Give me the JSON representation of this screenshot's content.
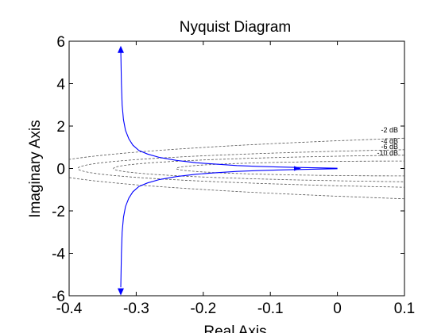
{
  "chart_data": {
    "type": "line",
    "title": "Nyquist Diagram",
    "xlabel": "Real Axis",
    "ylabel": "Imaginary Axis",
    "xlim": [
      -0.4,
      0.1
    ],
    "ylim": [
      -6,
      6
    ],
    "xticks": [
      -0.4,
      -0.3,
      -0.2,
      -0.1,
      0,
      0.1
    ],
    "xtick_labels": [
      "-0.4",
      "-0.3",
      "-0.2",
      "-0.1",
      "0",
      "0.1"
    ],
    "yticks": [
      -6,
      -4,
      -2,
      0,
      2,
      4,
      6
    ],
    "ytick_labels": [
      "-6",
      "-4",
      "-2",
      "0",
      "2",
      "4",
      "6"
    ],
    "grid": "M-circles (constant closed-loop gain contours)",
    "legend": "none",
    "line_color": "#0000ff",
    "grid_color": "#555555",
    "series": [
      {
        "branch": "positive-frequency",
        "points": [
          [
            -0.323,
            5.6
          ],
          [
            -0.322,
            4.0
          ],
          [
            -0.321,
            3.0
          ],
          [
            -0.319,
            2.3
          ],
          [
            -0.316,
            1.8
          ],
          [
            -0.311,
            1.4
          ],
          [
            -0.305,
            1.1
          ],
          [
            -0.296,
            0.85
          ],
          [
            -0.283,
            0.68
          ],
          [
            -0.265,
            0.52
          ],
          [
            -0.24,
            0.38
          ],
          [
            -0.21,
            0.27
          ],
          [
            -0.18,
            0.2
          ],
          [
            -0.15,
            0.14
          ],
          [
            -0.12,
            0.1
          ],
          [
            -0.09,
            0.07
          ],
          [
            -0.06,
            0.05
          ],
          [
            -0.03,
            0.03
          ],
          [
            0,
            0.01
          ]
        ]
      },
      {
        "branch": "negative-frequency",
        "points": [
          [
            -0.323,
            -5.6
          ],
          [
            -0.322,
            -4.0
          ],
          [
            -0.321,
            -3.0
          ],
          [
            -0.319,
            -2.3
          ],
          [
            -0.316,
            -1.8
          ],
          [
            -0.311,
            -1.4
          ],
          [
            -0.305,
            -1.1
          ],
          [
            -0.296,
            -0.85
          ],
          [
            -0.283,
            -0.68
          ],
          [
            -0.265,
            -0.52
          ],
          [
            -0.24,
            -0.38
          ],
          [
            -0.21,
            -0.27
          ],
          [
            -0.18,
            -0.2
          ],
          [
            -0.15,
            -0.14
          ],
          [
            -0.12,
            -0.1
          ],
          [
            -0.09,
            -0.07
          ],
          [
            -0.06,
            -0.05
          ],
          [
            -0.03,
            -0.03
          ],
          [
            0,
            -0.01
          ]
        ]
      }
    ],
    "arrows": [
      {
        "x": -0.323,
        "y": 5.6,
        "direction": "up"
      },
      {
        "x": -0.323,
        "y": -5.8,
        "direction": "down"
      },
      {
        "x": -0.06,
        "y": 0.0,
        "direction": "right"
      }
    ],
    "m_circles": [
      {
        "label": "-2 dB"
      },
      {
        "label": "-4 dB"
      },
      {
        "label": "-6 dB"
      },
      {
        "label": "-10 dB"
      }
    ]
  }
}
